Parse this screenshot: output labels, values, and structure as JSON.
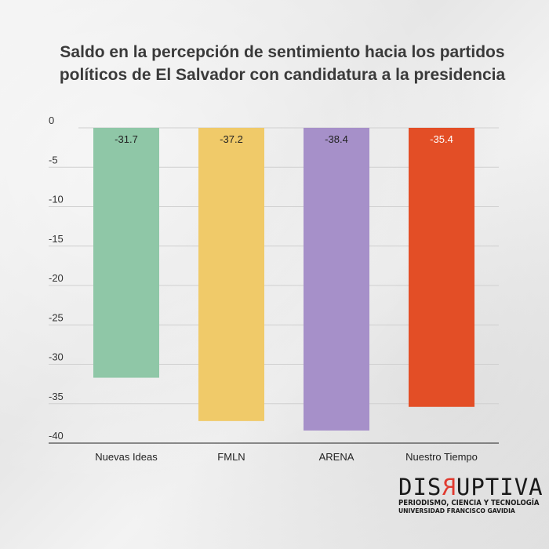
{
  "title": "Saldo en la percepción de sentimiento hacia los partidos políticos de El Salvador con candidatura a la presidencia",
  "chart_data": {
    "type": "bar",
    "title": "Saldo en la percepción de sentimiento hacia los partidos políticos de El Salvador con candidatura a la presidencia",
    "xlabel": "",
    "ylabel": "",
    "categories": [
      "Nuevas Ideas",
      "FMLN",
      "ARENA",
      "Nuestro Tiempo"
    ],
    "values": [
      -31.7,
      -37.2,
      -38.4,
      -35.4
    ],
    "data_labels": [
      "-31.7",
      "-37.2",
      "-38.4",
      "-35.4"
    ],
    "colors": [
      "#8fc7a7",
      "#f0ca69",
      "#a690c9",
      "#e34e26"
    ],
    "label_colors": [
      "#222222",
      "#222222",
      "#222222",
      "#ffffff"
    ],
    "ylim": [
      -40,
      0
    ],
    "yticks": [
      0,
      -5,
      -10,
      -15,
      -20,
      -25,
      -30,
      -35,
      -40
    ],
    "ytick_labels": [
      "0",
      "-5",
      "-10",
      "-15",
      "-20",
      "-25",
      "-30",
      "-35",
      "-40"
    ],
    "grid": true,
    "legend": "none"
  },
  "logo": {
    "word_pre": "DIS",
    "word_r": "R",
    "word_post": "UPTIVA",
    "line1": "PERIODISMO, CIENCIA Y TECNOLOGÍA",
    "line2": "UNIVERSIDAD FRANCISCO GAVIDIA"
  }
}
